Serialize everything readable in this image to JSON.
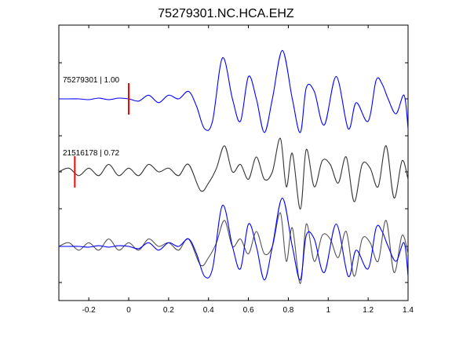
{
  "chart_data": {
    "type": "line",
    "title": "75279301.NC.HCA.EHZ",
    "xlabel": "",
    "ylabel": "",
    "xlim": [
      -0.35,
      1.4
    ],
    "xticks": [
      -0.2,
      0,
      0.2,
      0.4,
      0.6,
      0.8,
      1,
      1.2,
      1.4
    ],
    "xtick_labels": [
      "-0.2",
      "0",
      "0.2",
      "0.4",
      "0.6",
      "0.8",
      "1",
      "1.2",
      "1.4"
    ],
    "grid": false,
    "traces": [
      {
        "name": "75279301 | 1.00",
        "color": "#0000ff",
        "offset": 0,
        "pick_time": 0.0,
        "pick_color": "#ff0000",
        "x": [
          -0.35,
          -0.3,
          -0.25,
          -0.2,
          -0.15,
          -0.1,
          -0.05,
          0.0,
          0.05,
          0.1,
          0.15,
          0.2,
          0.25,
          0.3,
          0.34,
          0.38,
          0.42,
          0.47,
          0.52,
          0.56,
          0.6,
          0.64,
          0.68,
          0.72,
          0.77,
          0.82,
          0.86,
          0.89,
          0.93,
          0.98,
          1.04,
          1.1,
          1.14,
          1.2,
          1.24,
          1.27,
          1.3,
          1.34,
          1.38,
          1.4
        ],
        "y": [
          0.0,
          0.0,
          0.0,
          -0.01,
          0.01,
          -0.01,
          0.01,
          0.0,
          -0.03,
          0.05,
          -0.05,
          0.05,
          0.0,
          0.1,
          -0.1,
          -0.4,
          -0.3,
          0.55,
          0.0,
          -0.3,
          0.3,
          0.0,
          -0.45,
          0.0,
          0.65,
          0.0,
          -0.45,
          0.15,
          0.1,
          -0.35,
          0.3,
          -0.4,
          -0.05,
          -0.3,
          0.25,
          0.2,
          0.0,
          -0.2,
          0.05,
          -0.4
        ]
      },
      {
        "name": "21516178 | 0.72",
        "color": "#333333",
        "offset": 1,
        "pick_time": -0.27,
        "pick_color": "#ff0000",
        "x": [
          -0.35,
          -0.3,
          -0.25,
          -0.2,
          -0.15,
          -0.1,
          -0.05,
          0.0,
          0.05,
          0.1,
          0.15,
          0.2,
          0.25,
          0.3,
          0.36,
          0.4,
          0.44,
          0.48,
          0.52,
          0.56,
          0.6,
          0.64,
          0.68,
          0.72,
          0.76,
          0.79,
          0.82,
          0.86,
          0.89,
          0.93,
          0.97,
          1.01,
          1.05,
          1.09,
          1.13,
          1.17,
          1.21,
          1.25,
          1.29,
          1.33,
          1.37,
          1.4
        ],
        "y": [
          0.0,
          0.05,
          -0.05,
          0.05,
          -0.05,
          0.1,
          -0.05,
          0.05,
          -0.05,
          0.1,
          0.0,
          0.05,
          -0.05,
          0.1,
          -0.25,
          -0.15,
          0.05,
          0.35,
          0.0,
          0.1,
          -0.1,
          0.2,
          -0.1,
          0.0,
          0.45,
          -0.2,
          0.25,
          -0.5,
          0.3,
          -0.2,
          0.15,
          0.1,
          -0.15,
          0.2,
          -0.4,
          0.1,
          0.05,
          -0.2,
          0.35,
          -0.35,
          0.15,
          -0.1
        ]
      }
    ],
    "overlay": {
      "offset": 2,
      "series": [
        "75279301 | 1.00",
        "21516178 | 0.72"
      ]
    }
  }
}
